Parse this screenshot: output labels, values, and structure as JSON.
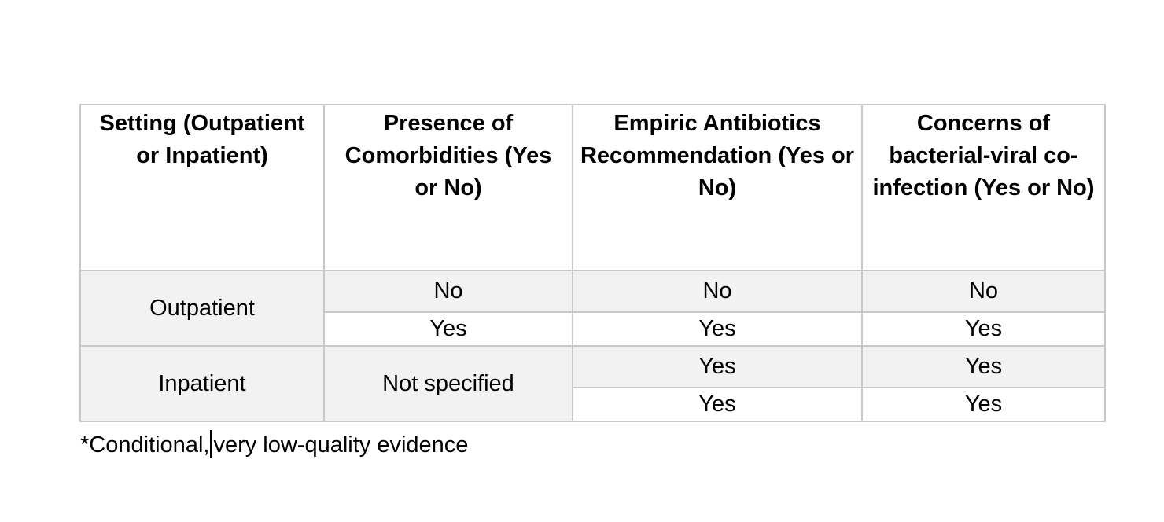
{
  "table": {
    "headers": [
      "Setting (Outpatient or Inpatient)",
      "Presence of Comorbidities (Yes or No)",
      "Empiric Antibiotics Recommendation (Yes or No)",
      "Concerns of bacterial-viral co-infection (Yes or No)"
    ],
    "rows": [
      {
        "setting": "Outpatient",
        "comorbidities": "No",
        "antibiotics": "No",
        "coinfection": "No"
      },
      {
        "setting": "Outpatient",
        "comorbidities": "Yes",
        "antibiotics": "Yes",
        "coinfection": "Yes"
      },
      {
        "setting": "Inpatient",
        "comorbidities": "Not specified",
        "antibiotics": "Yes",
        "coinfection": "Yes"
      },
      {
        "setting": "Inpatient",
        "comorbidities": "Not specified",
        "antibiotics": "Yes",
        "coinfection": "Yes"
      }
    ]
  },
  "footnote": {
    "before_cursor": "*Conditional,",
    "after_cursor": "very low-quality evidence"
  }
}
